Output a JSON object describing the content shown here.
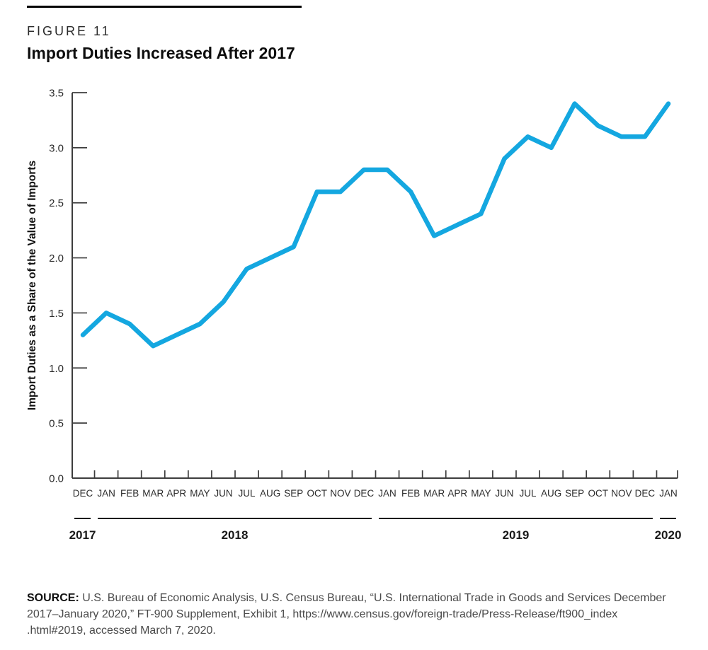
{
  "header": {
    "figure_label": "FIGURE 11",
    "title": "Import Duties Increased After 2017"
  },
  "chart_data": {
    "type": "line",
    "title": "Import Duties Increased After 2017",
    "xlabel": "",
    "ylabel": "Import Duties as a Share of the Value of Imports",
    "ylim": [
      0,
      3.5
    ],
    "grid": false,
    "legend": "none",
    "line_color": "#14a7e0",
    "yticks": [
      "3.5",
      "3.0",
      "2.5",
      "2.0",
      "1.5",
      "1.0",
      "0.5",
      "0.0"
    ],
    "categories": [
      "DEC",
      "JAN",
      "FEB",
      "MAR",
      "APR",
      "MAY",
      "JUN",
      "JUL",
      "AUG",
      "SEP",
      "OCT",
      "NOV",
      "DEC",
      "JAN",
      "FEB",
      "MAR",
      "APR",
      "MAY",
      "JUN",
      "JUL",
      "AUG",
      "SEP",
      "OCT",
      "NOV",
      "DEC",
      "JAN"
    ],
    "values": [
      1.3,
      1.5,
      1.4,
      1.2,
      1.3,
      1.4,
      1.6,
      1.9,
      2.0,
      2.1,
      2.6,
      2.6,
      2.8,
      2.8,
      2.6,
      2.2,
      2.3,
      2.4,
      2.9,
      3.1,
      3.0,
      3.4,
      3.2,
      3.1,
      3.1,
      3.4
    ],
    "year_groups": [
      {
        "label": "2017",
        "from": 0,
        "to": 0
      },
      {
        "label": "2018",
        "from": 1,
        "to": 12
      },
      {
        "label": "2019",
        "from": 13,
        "to": 24
      },
      {
        "label": "2020",
        "from": 25,
        "to": 25
      }
    ]
  },
  "source": {
    "label": "SOURCE:",
    "line1": "U.S. Bureau of Economic Analysis, U.S. Census Bureau, “U.S. International Trade in Goods and Services December",
    "line2": "2017–January 2020,” FT-900 Supplement, Exhibit 1, https://www.census.gov/foreign-trade/Press-Release/ft900_index",
    "line3": ".html#2019, accessed March 7, 2020."
  }
}
